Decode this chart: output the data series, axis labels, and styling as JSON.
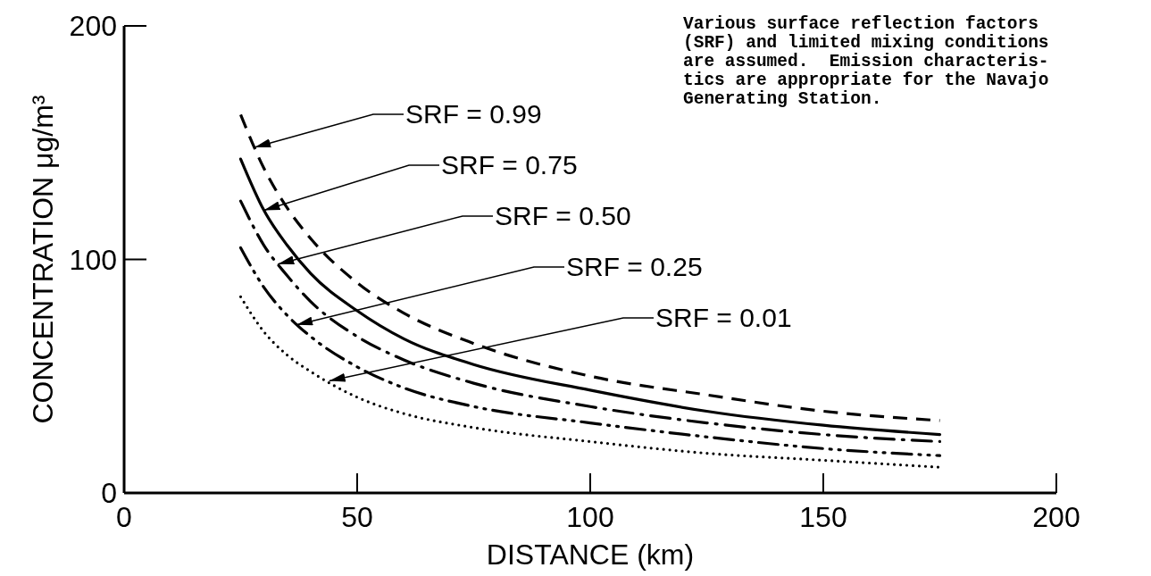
{
  "chart_data": {
    "type": "line",
    "xlabel": "DISTANCE (km)",
    "ylabel": "CONCENTRATION μg/m³",
    "xlim": [
      0,
      200
    ],
    "ylim": [
      0,
      200
    ],
    "xticks": [
      0,
      50,
      100,
      150,
      200
    ],
    "yticks": [
      0,
      100,
      200
    ],
    "grid": false,
    "marker": "none",
    "x": [
      25,
      30,
      35,
      40,
      50,
      60,
      75,
      100,
      125,
      150,
      175
    ],
    "series": [
      {
        "color": "#000000",
        "line_style": "dashed",
        "values": [
          162,
          139,
          122,
          109,
          90,
          77,
          64,
          50,
          42,
          35,
          31
        ]
      },
      {
        "color": "#000000",
        "line_style": "solid",
        "values": [
          143,
          121,
          106,
          94,
          78,
          66,
          55,
          44,
          35,
          29,
          25
        ]
      },
      {
        "color": "#000000",
        "line_style": "dashdot",
        "values": [
          125,
          106,
          93,
          82,
          67,
          57,
          47,
          37,
          30,
          25,
          22
        ]
      },
      {
        "color": "#000000",
        "line_style": "dashdotdot",
        "values": [
          105,
          88,
          76,
          67,
          54,
          45,
          37,
          30,
          24,
          19,
          16
        ]
      },
      {
        "color": "#000000",
        "line_style": "dotted",
        "values": [
          84,
          69,
          59,
          52,
          41,
          34,
          28,
          22,
          17,
          14,
          11
        ]
      }
    ],
    "annotations": [
      {
        "text": "SRF = 0.99",
        "x": 28,
        "y": 148
      },
      {
        "text": "SRF = 0.75",
        "x": 30,
        "y": 121
      },
      {
        "text": "SRF = 0.50",
        "x": 33,
        "y": 98
      },
      {
        "text": "SRF = 0.25",
        "x": 37,
        "y": 72
      },
      {
        "text": "SRF = 0.01",
        "x": 44,
        "y": 48
      },
      "Various surface reflection factors\n(SRF) and limited mixing conditions\nare assumed.  Emission characteris-\ntics are appropriate for the Navajo\nGenerating Station."
    ]
  }
}
